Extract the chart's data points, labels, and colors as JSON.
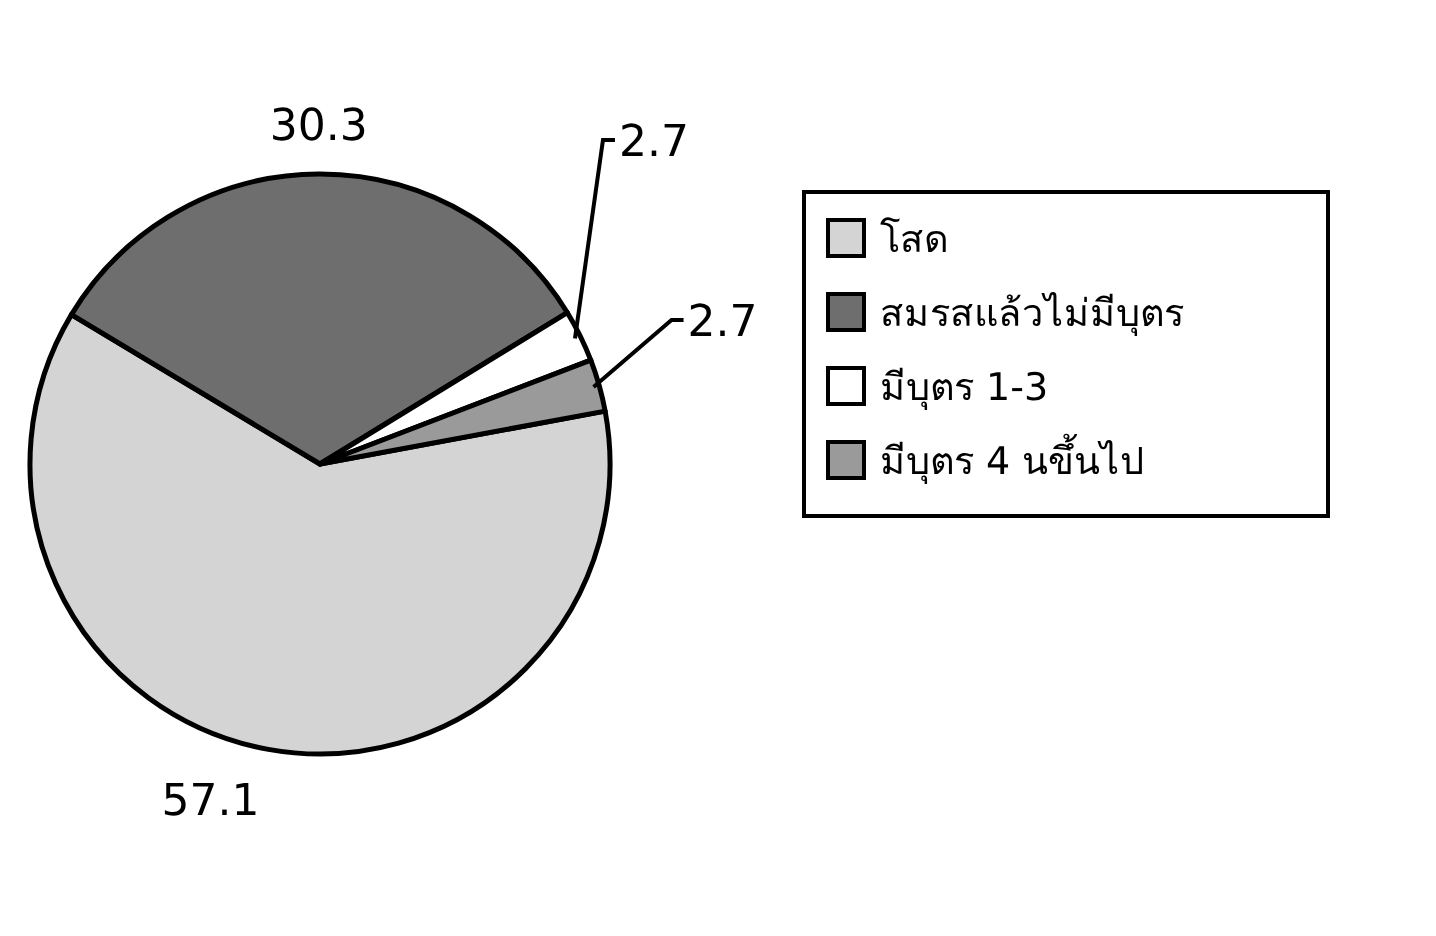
{
  "chart_data": {
    "type": "pie",
    "categories": [
      "โสด",
      "สมรสแล้วไม่มีบุตร",
      "มีบุตร 1-3",
      "มีบุตร 4 นขึ้นไป"
    ],
    "values": [
      57.1,
      30.3,
      2.7,
      2.7
    ],
    "colors": [
      "#d4d4d4",
      "#6e6e6e",
      "#ffffff",
      "#9a9a9a"
    ],
    "data_labels": true,
    "legend": "right"
  }
}
